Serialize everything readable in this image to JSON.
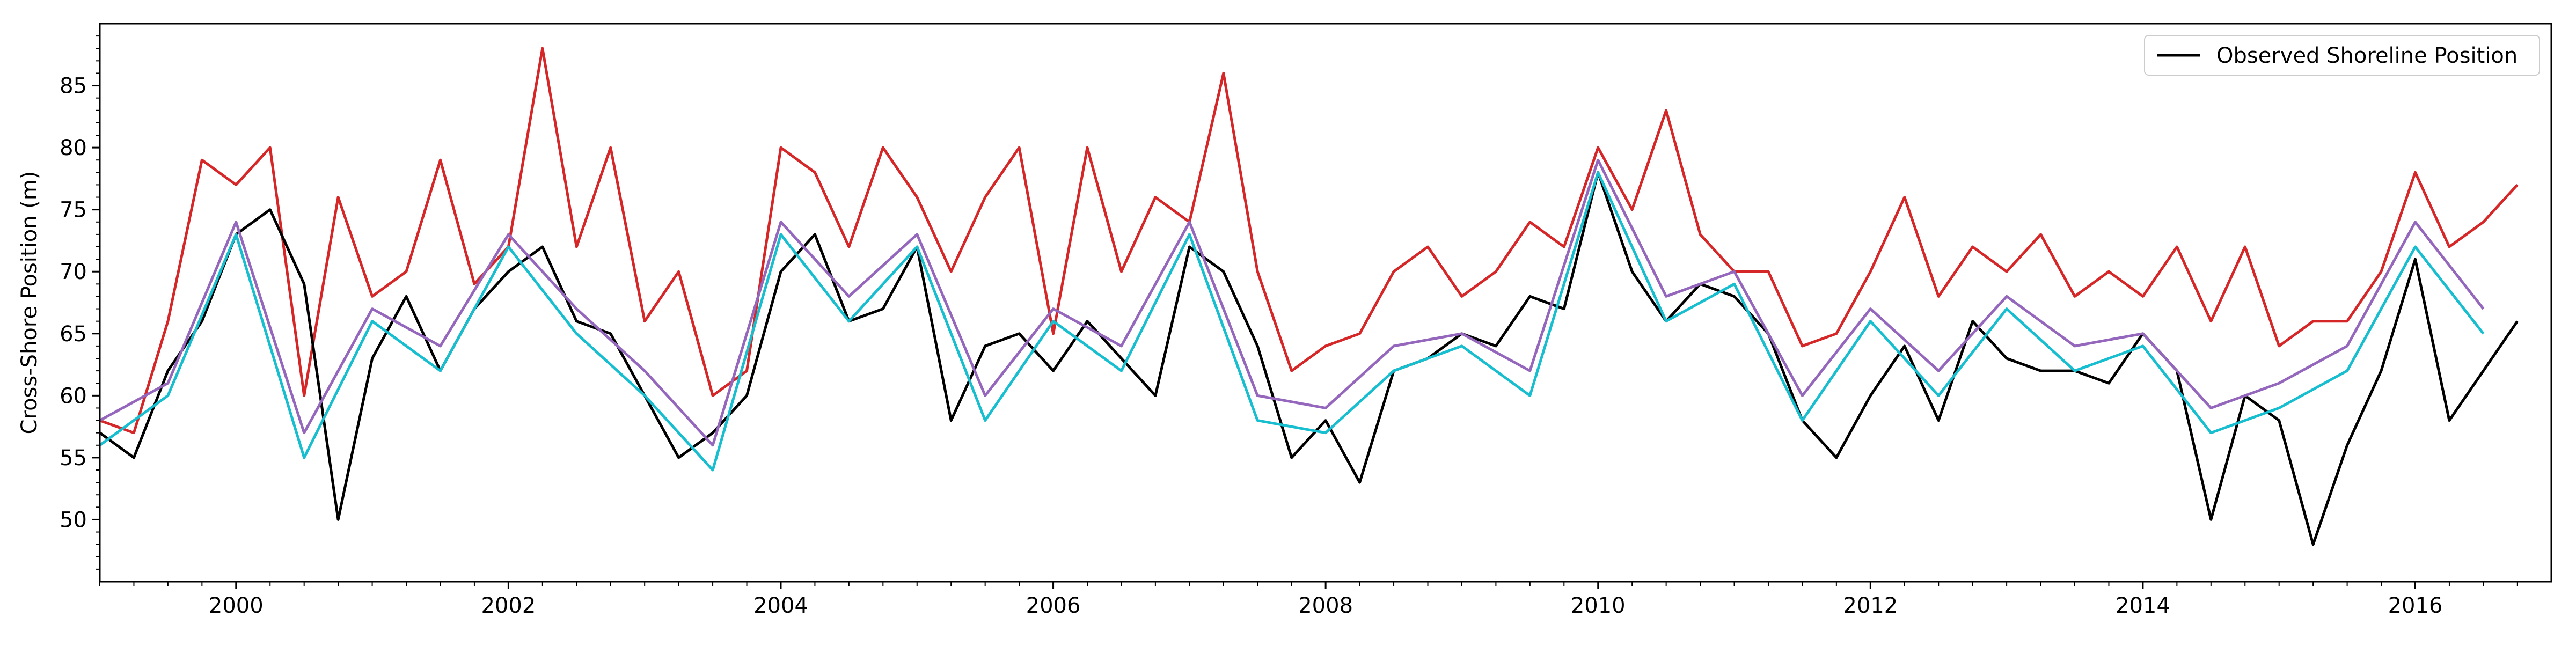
{
  "chart_data": {
    "type": "line",
    "title": "",
    "xlabel": "",
    "ylabel": "Cross-Shore Position (m)",
    "xlim": [
      "1999-01-01",
      "2016-12-31"
    ],
    "ylim": [
      45,
      90
    ],
    "x_ticks": [
      "2000",
      "2002",
      "2004",
      "2006",
      "2008",
      "2010",
      "2012",
      "2014",
      "2016"
    ],
    "y_ticks": [
      50,
      55,
      60,
      65,
      70,
      75,
      80,
      85
    ],
    "grid": false,
    "legend": {
      "position": "top-right",
      "entries": [
        "Observed Shoreline Position"
      ]
    },
    "series": [
      {
        "name": "Observed Shoreline Position",
        "color": "#000000",
        "x": [
          "1999-01",
          "1999-04",
          "1999-07",
          "1999-10",
          "2000-01",
          "2000-04",
          "2000-07",
          "2000-10",
          "2001-01",
          "2001-04",
          "2001-07",
          "2001-10",
          "2002-01",
          "2002-04",
          "2002-07",
          "2002-10",
          "2003-01",
          "2003-04",
          "2003-07",
          "2003-10",
          "2004-01",
          "2004-04",
          "2004-07",
          "2004-10",
          "2005-01",
          "2005-04",
          "2005-07",
          "2005-10",
          "2006-01",
          "2006-04",
          "2006-07",
          "2006-10",
          "2007-01",
          "2007-04",
          "2007-07",
          "2007-10",
          "2008-01",
          "2008-04",
          "2008-07",
          "2008-10",
          "2009-01",
          "2009-04",
          "2009-07",
          "2009-10",
          "2010-01",
          "2010-04",
          "2010-07",
          "2010-10",
          "2011-01",
          "2011-04",
          "2011-07",
          "2011-10",
          "2012-01",
          "2012-04",
          "2012-07",
          "2012-10",
          "2013-01",
          "2013-04",
          "2013-07",
          "2013-10",
          "2014-01",
          "2014-04",
          "2014-07",
          "2014-10",
          "2015-01",
          "2015-04",
          "2015-07",
          "2015-10",
          "2016-01",
          "2016-04",
          "2016-07",
          "2016-10"
        ],
        "values": [
          57,
          55,
          62,
          66,
          73,
          75,
          69,
          50,
          63,
          68,
          62,
          67,
          70,
          72,
          66,
          65,
          60,
          55,
          57,
          60,
          70,
          73,
          66,
          67,
          72,
          58,
          64,
          65,
          62,
          66,
          63,
          60,
          72,
          70,
          64,
          55,
          58,
          53,
          62,
          63,
          65,
          64,
          68,
          67,
          78,
          70,
          66,
          69,
          68,
          65,
          58,
          55,
          60,
          64,
          58,
          66,
          63,
          62,
          62,
          61,
          65,
          62,
          50,
          60,
          58,
          48,
          56,
          62,
          71,
          58,
          62,
          66
        ]
      },
      {
        "name": "",
        "color": "#d62728",
        "x": [
          "1999-01",
          "1999-04",
          "1999-07",
          "1999-10",
          "2000-01",
          "2000-04",
          "2000-07",
          "2000-10",
          "2001-01",
          "2001-04",
          "2001-07",
          "2001-10",
          "2002-01",
          "2002-04",
          "2002-07",
          "2002-10",
          "2003-01",
          "2003-04",
          "2003-07",
          "2003-10",
          "2004-01",
          "2004-04",
          "2004-07",
          "2004-10",
          "2005-01",
          "2005-04",
          "2005-07",
          "2005-10",
          "2006-01",
          "2006-04",
          "2006-07",
          "2006-10",
          "2007-01",
          "2007-04",
          "2007-07",
          "2007-10",
          "2008-01",
          "2008-04",
          "2008-07",
          "2008-10",
          "2009-01",
          "2009-04",
          "2009-07",
          "2009-10",
          "2010-01",
          "2010-04",
          "2010-07",
          "2010-10",
          "2011-01",
          "2011-04",
          "2011-07",
          "2011-10",
          "2012-01",
          "2012-04",
          "2012-07",
          "2012-10",
          "2013-01",
          "2013-04",
          "2013-07",
          "2013-10",
          "2014-01",
          "2014-04",
          "2014-07",
          "2014-10",
          "2015-01",
          "2015-04",
          "2015-07",
          "2015-10",
          "2016-01",
          "2016-04",
          "2016-07",
          "2016-10"
        ],
        "values": [
          58,
          57,
          66,
          79,
          77,
          80,
          60,
          76,
          68,
          70,
          79,
          69,
          72,
          88,
          72,
          80,
          66,
          70,
          60,
          62,
          80,
          78,
          72,
          80,
          76,
          70,
          76,
          80,
          65,
          80,
          70,
          76,
          74,
          86,
          70,
          62,
          64,
          65,
          70,
          72,
          68,
          70,
          74,
          72,
          80,
          75,
          83,
          73,
          70,
          70,
          64,
          65,
          70,
          76,
          68,
          72,
          70,
          73,
          68,
          70,
          68,
          72,
          66,
          72,
          64,
          66,
          66,
          70,
          78,
          72,
          74,
          77
        ]
      },
      {
        "name": "",
        "color": "#9467bd",
        "x": [
          "1999-01",
          "1999-07",
          "2000-01",
          "2000-07",
          "2001-01",
          "2001-07",
          "2002-01",
          "2002-07",
          "2003-01",
          "2003-07",
          "2004-01",
          "2004-07",
          "2005-01",
          "2005-07",
          "2006-01",
          "2006-07",
          "2007-01",
          "2007-07",
          "2008-01",
          "2008-07",
          "2009-01",
          "2009-07",
          "2010-01",
          "2010-07",
          "2011-01",
          "2011-07",
          "2012-01",
          "2012-07",
          "2013-01",
          "2013-07",
          "2014-01",
          "2014-07",
          "2015-01",
          "2015-07",
          "2016-01",
          "2016-07"
        ],
        "values": [
          58,
          61,
          74,
          57,
          67,
          64,
          73,
          67,
          62,
          56,
          74,
          68,
          73,
          60,
          67,
          64,
          74,
          60,
          59,
          64,
          65,
          62,
          79,
          68,
          70,
          60,
          67,
          62,
          68,
          64,
          65,
          59,
          61,
          64,
          74,
          67
        ]
      },
      {
        "name": "",
        "color": "#17becf",
        "x": [
          "1999-01",
          "1999-07",
          "2000-01",
          "2000-07",
          "2001-01",
          "2001-07",
          "2002-01",
          "2002-07",
          "2003-01",
          "2003-07",
          "2004-01",
          "2004-07",
          "2005-01",
          "2005-07",
          "2006-01",
          "2006-07",
          "2007-01",
          "2007-07",
          "2008-01",
          "2008-07",
          "2009-01",
          "2009-07",
          "2010-01",
          "2010-07",
          "2011-01",
          "2011-07",
          "2012-01",
          "2012-07",
          "2013-01",
          "2013-07",
          "2014-01",
          "2014-07",
          "2015-01",
          "2015-07",
          "2016-01",
          "2016-07"
        ],
        "values": [
          56,
          60,
          73,
          55,
          66,
          62,
          72,
          65,
          60,
          54,
          73,
          66,
          72,
          58,
          66,
          62,
          73,
          58,
          57,
          62,
          64,
          60,
          78,
          66,
          69,
          58,
          66,
          60,
          67,
          62,
          64,
          57,
          59,
          62,
          72,
          65
        ]
      }
    ]
  }
}
